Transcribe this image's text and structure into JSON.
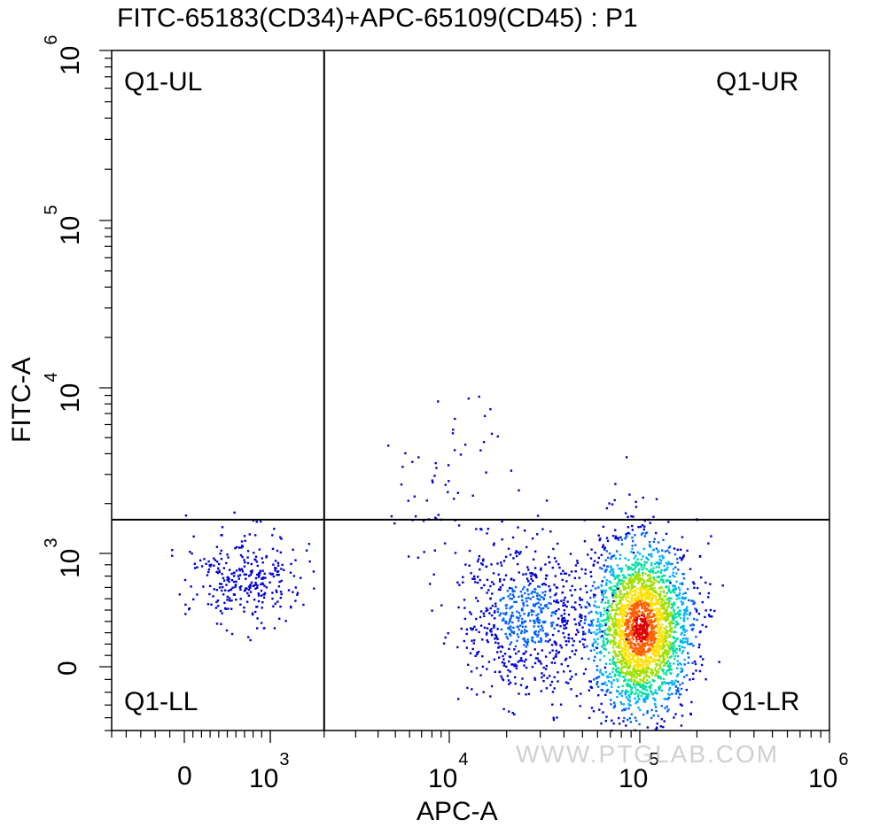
{
  "chart_data": {
    "type": "scatter",
    "title": "FITC-65183(CD34)+APC-65109(CD45) : P1",
    "xlabel": "APC-A",
    "ylabel": "FITC-A",
    "x_scale": "biexponential",
    "y_scale": "biexponential",
    "xlim": [
      -500,
      1000000
    ],
    "ylim": [
      -500,
      1000000
    ],
    "x_ticks": [
      {
        "value": 0,
        "base": "0",
        "exp": ""
      },
      {
        "value": 1000,
        "base": "10",
        "exp": "3"
      },
      {
        "value": 10000,
        "base": "10",
        "exp": "4"
      },
      {
        "value": 100000,
        "base": "10",
        "exp": "5"
      },
      {
        "value": 1000000,
        "base": "10",
        "exp": "6"
      }
    ],
    "y_ticks": [
      {
        "value": 0,
        "base": "0",
        "exp": ""
      },
      {
        "value": 1000,
        "base": "10",
        "exp": "3"
      },
      {
        "value": 10000,
        "base": "10",
        "exp": "4"
      },
      {
        "value": 100000,
        "base": "10",
        "exp": "5"
      },
      {
        "value": 1000000,
        "base": "10",
        "exp": "6"
      }
    ],
    "quadrant_gate": {
      "x": 2000,
      "y": 1600
    },
    "quadrants": {
      "ul": "Q1-UL",
      "ur": "Q1-UR",
      "ll": "Q1-LL",
      "lr": "Q1-LR"
    },
    "populations": [
      {
        "name": "",
        "center": [
          100000,
          350
        ],
        "density": "high"
      },
      {
        "name": "",
        "center": [
          25000,
          450
        ],
        "density": "medium"
      },
      {
        "name": "",
        "center": [
          700,
          800
        ],
        "density": "low"
      },
      {
        "name": "",
        "center": [
          10000,
          2500
        ],
        "density": "sparse"
      }
    ],
    "density_colors": [
      "#0000d0",
      "#0060ff",
      "#00b0ff",
      "#00e0a0",
      "#a0e000",
      "#ffe000",
      "#ff6000",
      "#e00000"
    ]
  },
  "watermark": "WWW.PTGLAB.COM"
}
